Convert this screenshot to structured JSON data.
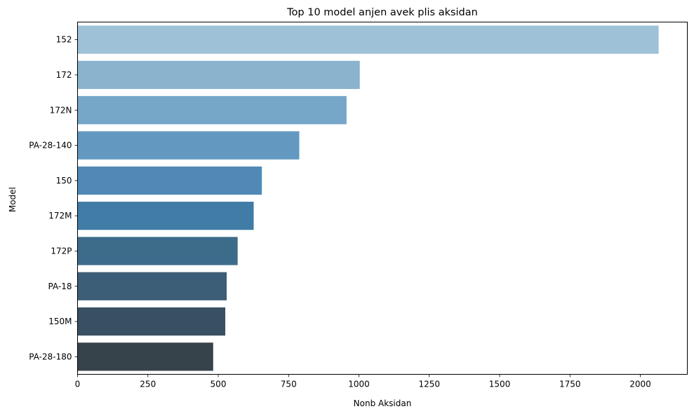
{
  "chart_data": {
    "type": "bar",
    "orientation": "horizontal",
    "title": "Top 10 model anjen avek plis aksidan",
    "xlabel": "Nonb Aksidan",
    "ylabel": "Model",
    "categories": [
      "152",
      "172",
      "172N",
      "PA-28-140",
      "150",
      "172M",
      "172P",
      "PA-18",
      "150M",
      "PA-28-180"
    ],
    "values": [
      2065,
      1003,
      956,
      788,
      655,
      626,
      569,
      530,
      525,
      482
    ],
    "xlim": [
      0,
      2167
    ],
    "xticks": [
      0,
      250,
      500,
      750,
      1000,
      1250,
      1500,
      1750,
      2000
    ],
    "grid": false,
    "legend": "none",
    "bar_colors": [
      "#9ec1d7",
      "#8ab3cd",
      "#76a6c8",
      "#6399c1",
      "#5089b6",
      "#417ca6",
      "#3d6c8b",
      "#3c5e77",
      "#394f62",
      "#37434b"
    ]
  }
}
